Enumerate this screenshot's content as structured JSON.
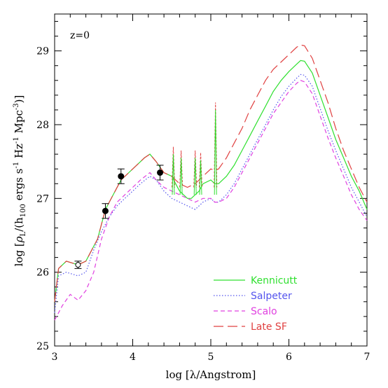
{
  "chart_data": {
    "type": "line",
    "annotation": "z=0",
    "xlabel": "log [λ/Angstrom]",
    "ylabel": "log [ρL/(h100 ergs s⁻¹ Hz⁻¹ Mpc⁻³)]",
    "ylabel_parts": {
      "pre": "log [",
      "rho": "ρ",
      "rho_sub": "L",
      "mid": "/(h",
      "h_sub": "100",
      "units": " ergs s",
      "s_exp": "-1",
      "hz": " Hz",
      "hz_exp": "-1",
      "mpc": " Mpc",
      "mpc_exp": "-3",
      "post": ")]"
    },
    "xlim": [
      3,
      7
    ],
    "ylim": [
      25,
      29.5
    ],
    "xticks": [
      3,
      4,
      5,
      6,
      7
    ],
    "yticks": [
      25,
      26,
      27,
      28,
      29
    ],
    "xtick_labels": [
      "3",
      "4",
      "5",
      "6",
      "7"
    ],
    "ytick_labels": [
      "25",
      "26",
      "27",
      "28",
      "29"
    ],
    "legend_position": "bottom-right",
    "series": [
      {
        "name": "Kennicutt",
        "color": "#30e030",
        "dash": "solid",
        "points": [
          [
            3.0,
            25.6
          ],
          [
            3.05,
            26.05
          ],
          [
            3.15,
            26.15
          ],
          [
            3.3,
            26.1
          ],
          [
            3.4,
            26.15
          ],
          [
            3.55,
            26.45
          ],
          [
            3.65,
            26.85
          ],
          [
            3.75,
            27.05
          ],
          [
            3.85,
            27.25
          ],
          [
            3.95,
            27.35
          ],
          [
            4.05,
            27.45
          ],
          [
            4.15,
            27.55
          ],
          [
            4.22,
            27.6
          ],
          [
            4.3,
            27.5
          ],
          [
            4.4,
            27.35
          ],
          [
            4.5,
            27.3
          ],
          [
            4.55,
            27.2
          ],
          [
            4.6,
            27.1
          ],
          [
            4.65,
            27.05
          ],
          [
            4.7,
            27.0
          ],
          [
            4.75,
            27.0
          ],
          [
            4.8,
            27.05
          ],
          [
            4.85,
            27.1
          ],
          [
            4.9,
            27.2
          ],
          [
            5.0,
            27.25
          ],
          [
            5.05,
            27.2
          ],
          [
            5.1,
            27.2
          ],
          [
            5.2,
            27.3
          ],
          [
            5.3,
            27.45
          ],
          [
            5.4,
            27.65
          ],
          [
            5.5,
            27.85
          ],
          [
            5.6,
            28.05
          ],
          [
            5.7,
            28.25
          ],
          [
            5.8,
            28.45
          ],
          [
            5.9,
            28.6
          ],
          [
            6.0,
            28.72
          ],
          [
            6.1,
            28.82
          ],
          [
            6.15,
            28.87
          ],
          [
            6.2,
            28.86
          ],
          [
            6.3,
            28.7
          ],
          [
            6.4,
            28.4
          ],
          [
            6.5,
            28.1
          ],
          [
            6.6,
            27.8
          ],
          [
            6.7,
            27.55
          ],
          [
            6.8,
            27.3
          ],
          [
            6.9,
            27.1
          ],
          [
            7.0,
            26.85
          ]
        ]
      },
      {
        "name": "Salpeter",
        "color": "#5555ee",
        "dash": "dotted",
        "points": [
          [
            3.0,
            25.45
          ],
          [
            3.05,
            25.95
          ],
          [
            3.15,
            26.0
          ],
          [
            3.3,
            25.95
          ],
          [
            3.4,
            26.0
          ],
          [
            3.5,
            26.3
          ],
          [
            3.6,
            26.55
          ],
          [
            3.7,
            26.75
          ],
          [
            3.8,
            26.9
          ],
          [
            3.9,
            27.0
          ],
          [
            4.0,
            27.1
          ],
          [
            4.1,
            27.2
          ],
          [
            4.22,
            27.3
          ],
          [
            4.3,
            27.25
          ],
          [
            4.4,
            27.1
          ],
          [
            4.5,
            27.0
          ],
          [
            4.6,
            26.95
          ],
          [
            4.7,
            26.9
          ],
          [
            4.8,
            26.85
          ],
          [
            4.9,
            26.95
          ],
          [
            5.0,
            27.0
          ],
          [
            5.05,
            26.95
          ],
          [
            5.1,
            26.95
          ],
          [
            5.2,
            27.05
          ],
          [
            5.3,
            27.2
          ],
          [
            5.4,
            27.4
          ],
          [
            5.5,
            27.6
          ],
          [
            5.6,
            27.8
          ],
          [
            5.7,
            28.0
          ],
          [
            5.8,
            28.2
          ],
          [
            5.9,
            28.38
          ],
          [
            6.0,
            28.52
          ],
          [
            6.1,
            28.63
          ],
          [
            6.15,
            28.68
          ],
          [
            6.2,
            28.67
          ],
          [
            6.3,
            28.52
          ],
          [
            6.4,
            28.22
          ],
          [
            6.5,
            27.92
          ],
          [
            6.6,
            27.65
          ],
          [
            6.7,
            27.4
          ],
          [
            6.8,
            27.15
          ],
          [
            6.9,
            26.95
          ],
          [
            7.0,
            26.75
          ]
        ]
      },
      {
        "name": "Scalo",
        "color": "#e040e0",
        "dash": "dashed",
        "points": [
          [
            3.0,
            25.35
          ],
          [
            3.1,
            25.55
          ],
          [
            3.2,
            25.7
          ],
          [
            3.3,
            25.62
          ],
          [
            3.4,
            25.75
          ],
          [
            3.5,
            26.0
          ],
          [
            3.6,
            26.45
          ],
          [
            3.7,
            26.75
          ],
          [
            3.8,
            26.95
          ],
          [
            3.9,
            27.05
          ],
          [
            4.0,
            27.15
          ],
          [
            4.1,
            27.25
          ],
          [
            4.22,
            27.35
          ],
          [
            4.3,
            27.25
          ],
          [
            4.4,
            27.15
          ],
          [
            4.5,
            27.1
          ],
          [
            4.6,
            27.05
          ],
          [
            4.7,
            27.0
          ],
          [
            4.8,
            26.95
          ],
          [
            4.9,
            27.0
          ],
          [
            5.0,
            27.0
          ],
          [
            5.05,
            26.95
          ],
          [
            5.1,
            26.95
          ],
          [
            5.2,
            27.0
          ],
          [
            5.3,
            27.15
          ],
          [
            5.4,
            27.35
          ],
          [
            5.5,
            27.55
          ],
          [
            5.6,
            27.75
          ],
          [
            5.7,
            27.95
          ],
          [
            5.8,
            28.15
          ],
          [
            5.9,
            28.3
          ],
          [
            6.0,
            28.45
          ],
          [
            6.1,
            28.56
          ],
          [
            6.15,
            28.6
          ],
          [
            6.2,
            28.58
          ],
          [
            6.3,
            28.42
          ],
          [
            6.4,
            28.12
          ],
          [
            6.5,
            27.82
          ],
          [
            6.6,
            27.55
          ],
          [
            6.7,
            27.3
          ],
          [
            6.8,
            27.05
          ],
          [
            6.9,
            26.85
          ],
          [
            7.0,
            26.7
          ]
        ]
      },
      {
        "name": "Late SF",
        "color": "#e04040",
        "dash": "long-dash",
        "points": [
          [
            3.0,
            25.6
          ],
          [
            3.05,
            26.05
          ],
          [
            3.15,
            26.15
          ],
          [
            3.3,
            26.1
          ],
          [
            3.4,
            26.15
          ],
          [
            3.55,
            26.45
          ],
          [
            3.65,
            26.85
          ],
          [
            3.75,
            27.05
          ],
          [
            3.85,
            27.25
          ],
          [
            3.95,
            27.35
          ],
          [
            4.05,
            27.45
          ],
          [
            4.15,
            27.55
          ],
          [
            4.22,
            27.6
          ],
          [
            4.3,
            27.5
          ],
          [
            4.4,
            27.35
          ],
          [
            4.5,
            27.3
          ],
          [
            4.55,
            27.25
          ],
          [
            4.6,
            27.2
          ],
          [
            4.7,
            27.15
          ],
          [
            4.8,
            27.2
          ],
          [
            4.9,
            27.3
          ],
          [
            5.0,
            27.4
          ],
          [
            5.05,
            27.38
          ],
          [
            5.1,
            27.4
          ],
          [
            5.2,
            27.55
          ],
          [
            5.3,
            27.75
          ],
          [
            5.4,
            27.95
          ],
          [
            5.5,
            28.2
          ],
          [
            5.6,
            28.4
          ],
          [
            5.7,
            28.6
          ],
          [
            5.8,
            28.75
          ],
          [
            5.9,
            28.85
          ],
          [
            6.0,
            28.95
          ],
          [
            6.1,
            29.05
          ],
          [
            6.15,
            29.08
          ],
          [
            6.2,
            29.07
          ],
          [
            6.3,
            28.9
          ],
          [
            6.4,
            28.6
          ],
          [
            6.5,
            28.3
          ],
          [
            6.6,
            27.95
          ],
          [
            6.7,
            27.65
          ],
          [
            6.8,
            27.4
          ],
          [
            6.9,
            27.15
          ],
          [
            7.0,
            26.95
          ]
        ]
      }
    ],
    "spikes": [
      {
        "x": 4.52,
        "top": 27.7
      },
      {
        "x": 4.62,
        "top": 27.65
      },
      {
        "x": 4.8,
        "top": 27.65
      },
      {
        "x": 4.87,
        "top": 27.62
      },
      {
        "x": 5.06,
        "top": 28.3
      }
    ],
    "data_points": [
      {
        "x": 3.3,
        "y": 26.1,
        "err": 0.05,
        "filled": false
      },
      {
        "x": 3.65,
        "y": 26.83,
        "err": 0.1,
        "filled": true
      },
      {
        "x": 3.85,
        "y": 27.3,
        "err": 0.1,
        "filled": true
      },
      {
        "x": 4.35,
        "y": 27.35,
        "err": 0.1,
        "filled": true
      }
    ]
  }
}
